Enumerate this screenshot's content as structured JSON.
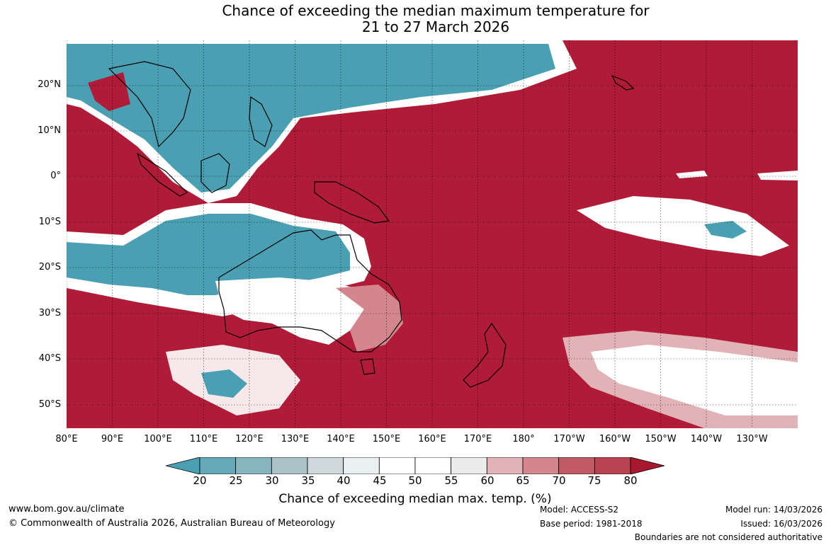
{
  "title": {
    "line1": "Chance of exceeding the median maximum temperature for",
    "line2": "21 to 27 March 2026"
  },
  "map": {
    "lat_labels": [
      "20°N",
      "10°N",
      "0°",
      "10°S",
      "20°S",
      "30°S",
      "40°S",
      "50°S"
    ],
    "lon_labels": [
      "80°E",
      "90°E",
      "100°E",
      "110°E",
      "120°E",
      "130°E",
      "140°E",
      "150°E",
      "160°E",
      "170°E",
      "180°",
      "170°W",
      "160°W",
      "150°W",
      "140°W",
      "130°W"
    ],
    "colors": {
      "very_warm": "#b01c37",
      "warm_1": "#c25a66",
      "warm_2": "#d4868f",
      "warm_3": "#e1b3b7",
      "neutral": "#ffffff",
      "cool_1": "#cfd8da",
      "cool_2": "#a9c3c8",
      "very_cool": "#4aa0b2"
    }
  },
  "colorbar": {
    "ticks": [
      "20",
      "25",
      "30",
      "35",
      "40",
      "45",
      "50",
      "55",
      "60",
      "65",
      "70",
      "75",
      "80"
    ],
    "colors": [
      "#4aa0b2",
      "#65a8b7",
      "#86b5c0",
      "#a9c3c8",
      "#cfd8da",
      "#e8f0f2",
      "#ffffff",
      "#ffffff",
      "#ececec",
      "#e1b3b7",
      "#d4868f",
      "#c25a66",
      "#b8424f",
      "#a8182f"
    ],
    "title": "Chance of exceeding median max. temp. (%)"
  },
  "footer": {
    "website": "www.bom.gov.au/climate",
    "copyright": "© Commonwealth of Australia 2026, Australian Bureau of Meteorology",
    "model": "Model: ACCESS-S2",
    "base_period": "Base period: 1981-2018",
    "model_run": "Model run: 14/03/2026",
    "issued": "Issued: 16/03/2026",
    "disclaimer": "Boundaries are not considered authoritative"
  }
}
